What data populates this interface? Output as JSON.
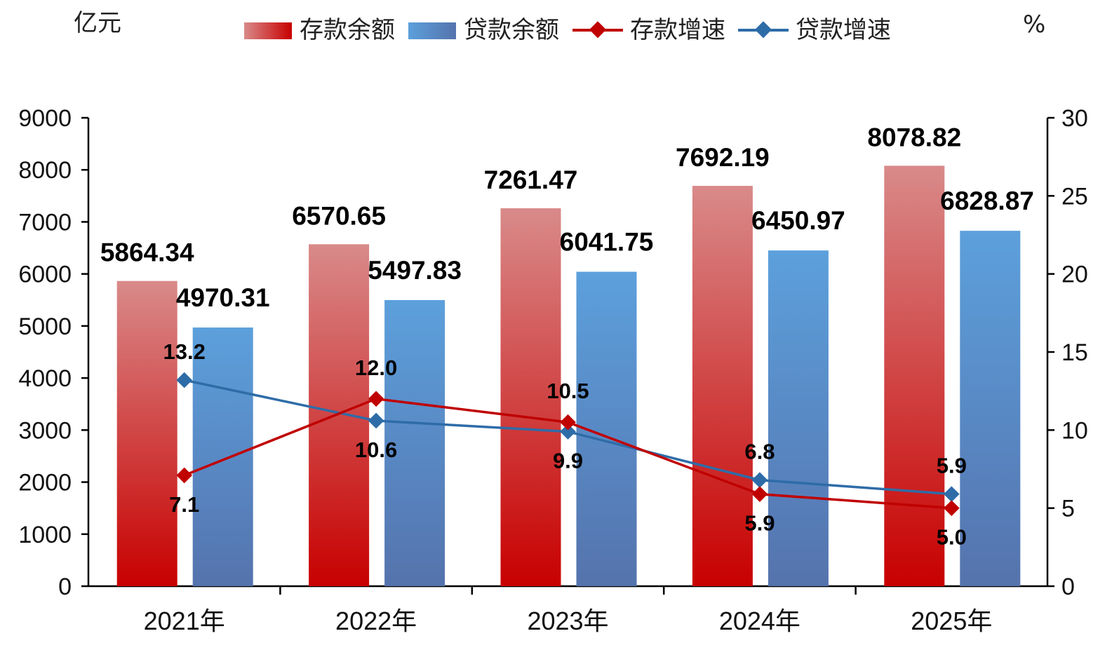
{
  "chart_data": {
    "type": "bar",
    "title": "",
    "left_unit": "亿元",
    "right_unit": "%",
    "categories": [
      "2021年",
      "2022年",
      "2023年",
      "2024年",
      "2025年"
    ],
    "series": [
      {
        "name": "存款余额",
        "kind": "bar",
        "axis": "left",
        "values": [
          5864.34,
          6570.65,
          7261.47,
          7692.19,
          8078.82
        ],
        "labels": [
          "5864.34",
          "6570.65",
          "7261.47",
          "7692.19",
          "8078.82"
        ]
      },
      {
        "name": "贷款余额",
        "kind": "bar",
        "axis": "left",
        "values": [
          4970.31,
          5497.83,
          6041.75,
          6450.97,
          6828.87
        ],
        "labels": [
          "4970.31",
          "5497.83",
          "6041.75",
          "6450.97",
          "6828.87"
        ]
      },
      {
        "name": "存款增速",
        "kind": "line",
        "axis": "right",
        "values": [
          7.1,
          12.0,
          10.5,
          5.9,
          5.0
        ],
        "labels": [
          "7.1",
          "12.0",
          "10.5",
          "5.9",
          "5.0"
        ]
      },
      {
        "name": "贷款增速",
        "kind": "line",
        "axis": "right",
        "values": [
          13.2,
          10.6,
          9.9,
          6.8,
          5.9
        ],
        "labels": [
          "13.2",
          "10.6",
          "9.9",
          "6.8",
          "5.9"
        ]
      }
    ],
    "left_axis": {
      "min": 0,
      "max": 9000,
      "ticks": [
        "0",
        "1000",
        "2000",
        "3000",
        "4000",
        "5000",
        "6000",
        "7000",
        "8000",
        "9000"
      ]
    },
    "right_axis": {
      "min": 0,
      "max": 30,
      "ticks": [
        "0",
        "5",
        "10",
        "15",
        "20",
        "25",
        "30"
      ]
    },
    "legend_position": "top",
    "grid": false,
    "colors": {
      "deposit_top": "#d98a8a",
      "deposit_bottom": "#c80000",
      "loan_top": "#5ca0dc",
      "loan_bottom": "#5573ad",
      "deposit_line": "#c00000",
      "loan_line": "#2e6ca8"
    }
  }
}
